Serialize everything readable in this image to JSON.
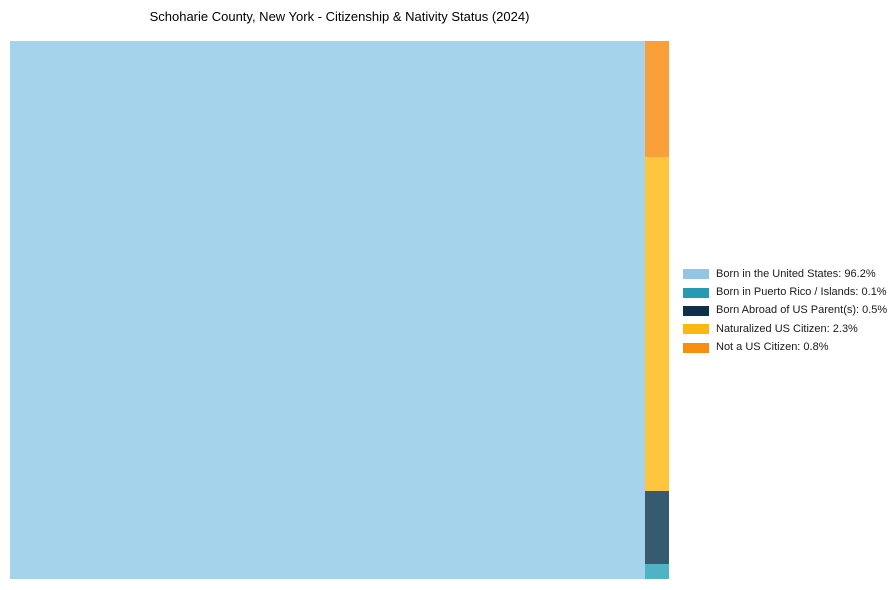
{
  "chart_data": {
    "type": "treemap",
    "title": "Schoharie County, New York - Citizenship & Nativity Status (2024)",
    "unit": "%",
    "series": [
      {
        "name": "Born in the United States",
        "value": 96.2,
        "color": "#A5D3EB",
        "legend_color": "#92C6E1"
      },
      {
        "name": "Born in Puerto Rico / Islands",
        "value": 0.1,
        "color": "#4FB3C5",
        "legend_color": "#2899B3"
      },
      {
        "name": "Born Abroad of US Parent(s)",
        "value": 0.5,
        "color": "#365A70",
        "legend_color": "#0E3049"
      },
      {
        "name": "Naturalized US Citizen",
        "value": 2.3,
        "color": "#FEC63E",
        "legend_color": "#FDB713"
      },
      {
        "name": "Not a US Citizen",
        "value": 0.8,
        "color": "#F9A03A",
        "legend_color": "#F78F0E"
      }
    ],
    "legend_position": "right-center",
    "layout_note": "largest value fills full plot height on the left; remaining values stacked top-to-bottom (reverse legend order) in a narrow right column"
  }
}
